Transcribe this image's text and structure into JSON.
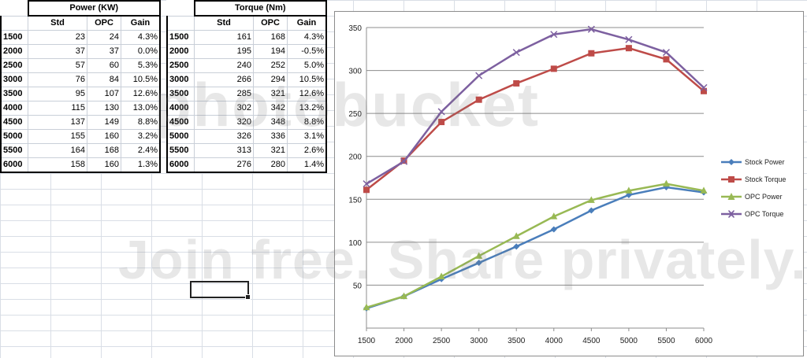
{
  "power_table": {
    "title": "Power (KW)",
    "columns": [
      "Std",
      "OPC",
      "Gain"
    ],
    "rows": [
      {
        "rpm": "1500",
        "std": "23",
        "opc": "24",
        "gain": "4.3%"
      },
      {
        "rpm": "2000",
        "std": "37",
        "opc": "37",
        "gain": "0.0%"
      },
      {
        "rpm": "2500",
        "std": "57",
        "opc": "60",
        "gain": "5.3%"
      },
      {
        "rpm": "3000",
        "std": "76",
        "opc": "84",
        "gain": "10.5%"
      },
      {
        "rpm": "3500",
        "std": "95",
        "opc": "107",
        "gain": "12.6%"
      },
      {
        "rpm": "4000",
        "std": "115",
        "opc": "130",
        "gain": "13.0%"
      },
      {
        "rpm": "4500",
        "std": "137",
        "opc": "149",
        "gain": "8.8%"
      },
      {
        "rpm": "5000",
        "std": "155",
        "opc": "160",
        "gain": "3.2%"
      },
      {
        "rpm": "5500",
        "std": "164",
        "opc": "168",
        "gain": "2.4%"
      },
      {
        "rpm": "6000",
        "std": "158",
        "opc": "160",
        "gain": "1.3%"
      }
    ]
  },
  "torque_table": {
    "title": "Torque (Nm)",
    "columns": [
      "Std",
      "OPC",
      "Gain"
    ],
    "rows": [
      {
        "rpm": "1500",
        "std": "161",
        "opc": "168",
        "gain": "4.3%"
      },
      {
        "rpm": "2000",
        "std": "195",
        "opc": "194",
        "gain": "-0.5%"
      },
      {
        "rpm": "2500",
        "std": "240",
        "opc": "252",
        "gain": "5.0%"
      },
      {
        "rpm": "3000",
        "std": "266",
        "opc": "294",
        "gain": "10.5%"
      },
      {
        "rpm": "3500",
        "std": "285",
        "opc": "321",
        "gain": "12.6%"
      },
      {
        "rpm": "4000",
        "std": "302",
        "opc": "342",
        "gain": "13.2%"
      },
      {
        "rpm": "4500",
        "std": "320",
        "opc": "348",
        "gain": "8.8%"
      },
      {
        "rpm": "5000",
        "std": "326",
        "opc": "336",
        "gain": "3.1%"
      },
      {
        "rpm": "5500",
        "std": "313",
        "opc": "321",
        "gain": "2.6%"
      },
      {
        "rpm": "6000",
        "std": "276",
        "opc": "280",
        "gain": "1.4%"
      }
    ]
  },
  "watermark": {
    "brand": "photobucket",
    "tagline": "Join free. Share privately."
  },
  "chart_data": {
    "type": "line",
    "title": "",
    "xlabel": "",
    "ylabel": "",
    "x": [
      1500,
      2000,
      2500,
      3000,
      3500,
      4000,
      4500,
      5000,
      5500,
      6000
    ],
    "ylim": [
      0,
      350
    ],
    "yticks": [
      50,
      100,
      150,
      200,
      250,
      300,
      350
    ],
    "grid": true,
    "legend_position": "right",
    "series": [
      {
        "name": "Stock Power",
        "color": "#4a7ebb",
        "marker": "diamond",
        "values": [
          23,
          37,
          57,
          76,
          95,
          115,
          137,
          155,
          164,
          158
        ]
      },
      {
        "name": "Stock Torque",
        "color": "#be4b48",
        "marker": "square",
        "values": [
          161,
          195,
          240,
          266,
          285,
          302,
          320,
          326,
          313,
          276
        ]
      },
      {
        "name": "OPC Power",
        "color": "#98b954",
        "marker": "triangle",
        "values": [
          24,
          37,
          60,
          84,
          107,
          130,
          149,
          160,
          168,
          160
        ]
      },
      {
        "name": "OPC Torque",
        "color": "#7d60a0",
        "marker": "x",
        "values": [
          168,
          194,
          252,
          294,
          321,
          342,
          348,
          336,
          321,
          280
        ]
      }
    ]
  }
}
